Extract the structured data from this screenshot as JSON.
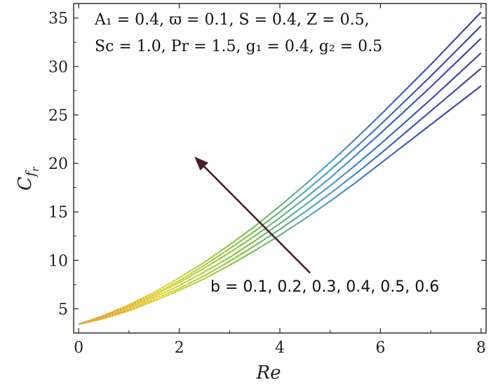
{
  "chart_data": {
    "type": "line",
    "title": "",
    "xlabel": "Re",
    "ylabel": "C",
    "ylabel_sub": "f",
    "ylabel_subsub": "r",
    "xlim": [
      -0.1,
      8.1
    ],
    "ylim": [
      2.5,
      36.5
    ],
    "xticks": [
      0,
      2,
      4,
      6,
      8
    ],
    "yticks": [
      5,
      10,
      15,
      20,
      25,
      30,
      35
    ],
    "grid": false,
    "legend_placement": "none",
    "x": [
      0,
      0.5,
      1,
      1.5,
      2,
      2.5,
      3,
      3.5,
      4,
      4.5,
      5,
      5.5,
      6,
      6.5,
      7,
      7.5,
      8
    ],
    "series": [
      {
        "values": [
          3.4,
          4.0,
          4.8,
          5.8,
          6.9,
          8.1,
          9.5,
          11.0,
          12.6,
          14.3,
          16.1,
          18.0,
          20.0,
          22.0,
          24.0,
          26.0,
          28.0
        ]
      },
      {
        "values": [
          3.4,
          4.1,
          4.9,
          6.0,
          7.1,
          8.4,
          9.9,
          11.5,
          13.2,
          15.0,
          16.9,
          18.9,
          21.0,
          23.2,
          25.4,
          27.6,
          29.8
        ]
      },
      {
        "values": [
          3.4,
          4.1,
          5.1,
          6.2,
          7.4,
          8.8,
          10.3,
          12.0,
          13.8,
          15.7,
          17.7,
          19.8,
          22.0,
          24.3,
          26.6,
          29.0,
          31.4
        ]
      },
      {
        "values": [
          3.4,
          4.2,
          5.2,
          6.4,
          7.7,
          9.2,
          10.8,
          12.5,
          14.4,
          16.4,
          18.5,
          20.8,
          23.1,
          25.5,
          27.9,
          30.4,
          32.9
        ]
      },
      {
        "values": [
          3.4,
          4.2,
          5.3,
          6.5,
          7.9,
          9.5,
          11.2,
          13.0,
          15.0,
          17.1,
          19.3,
          21.6,
          24.0,
          26.5,
          29.0,
          31.6,
          34.2
        ]
      },
      {
        "values": [
          3.4,
          4.3,
          5.4,
          6.7,
          8.2,
          9.8,
          11.6,
          13.5,
          15.6,
          17.8,
          20.1,
          22.5,
          25.0,
          27.6,
          30.2,
          32.9,
          35.6
        ]
      }
    ],
    "color_gradient": [
      "#4a3aa0",
      "#3d5bbf",
      "#4fa6d6",
      "#86c94a",
      "#e8e24a",
      "#f3a43a",
      "#e0405a"
    ],
    "arrow": {
      "from": [
        4.6,
        8.7
      ],
      "to": [
        2.3,
        20.7
      ],
      "color": "#4a1c2c"
    },
    "params_line1": "A₁ = 0.4, ϖ = 0.1, S = 0.4, Z = 0.5,",
    "params_line2": "Sc = 1.0, Pr = 1.5, g₁ = 0.4, g₂ = 0.5",
    "annotation": "b = 0.1, 0.2, 0.3, 0.4, 0.5, 0.6"
  }
}
